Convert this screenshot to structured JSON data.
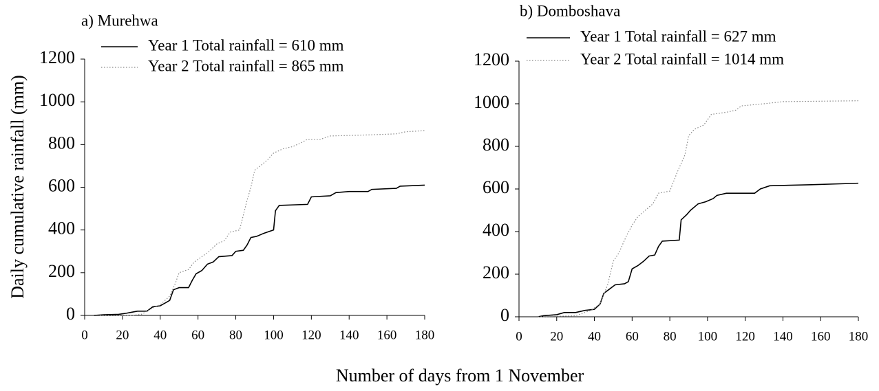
{
  "ylabel": "Daily cumulative rainfall (mm)",
  "xlabel": "Number of days from 1 November",
  "chart_data": [
    {
      "type": "line",
      "title": "a) Murehwa",
      "xlim": [
        0,
        180
      ],
      "xticks": [
        0,
        20,
        40,
        60,
        80,
        100,
        120,
        140,
        160,
        180
      ],
      "ylim": [
        0,
        1200
      ],
      "yticks": [
        0,
        200,
        400,
        600,
        800,
        1000,
        1200
      ],
      "series": [
        {
          "name": "Year 1 Total rainfall = 610 mm",
          "color": "#000000",
          "style": "solid",
          "x": [
            5,
            10,
            18,
            22,
            25,
            28,
            33,
            36,
            40,
            43,
            45,
            47,
            50,
            55,
            57,
            59,
            62,
            65,
            68,
            71,
            78,
            80,
            84,
            86,
            88,
            91,
            95,
            100,
            101,
            103,
            118,
            120,
            130,
            133,
            140,
            150,
            152,
            165,
            167,
            180
          ],
          "values": [
            0,
            3,
            5,
            10,
            15,
            20,
            20,
            40,
            45,
            60,
            70,
            120,
            130,
            130,
            165,
            195,
            210,
            240,
            250,
            275,
            280,
            300,
            305,
            330,
            365,
            370,
            385,
            400,
            490,
            515,
            520,
            555,
            560,
            575,
            580,
            580,
            590,
            595,
            605,
            610
          ]
        },
        {
          "name": "Year 2 Total rainfall = 865 mm",
          "color": "#888888",
          "style": "dotted",
          "x": [
            8,
            25,
            30,
            35,
            40,
            45,
            48,
            50,
            55,
            58,
            62,
            66,
            70,
            74,
            77,
            82,
            84,
            86,
            88,
            90,
            93,
            97,
            100,
            105,
            110,
            115,
            118,
            125,
            130,
            150,
            165,
            170,
            180
          ],
          "values": [
            0,
            0,
            5,
            30,
            50,
            90,
            150,
            200,
            215,
            250,
            275,
            300,
            335,
            350,
            390,
            400,
            470,
            540,
            600,
            680,
            700,
            730,
            760,
            780,
            790,
            810,
            825,
            825,
            840,
            845,
            850,
            860,
            865
          ]
        }
      ]
    },
    {
      "type": "line",
      "title": "b) Domboshava",
      "xlim": [
        0,
        180
      ],
      "xticks": [
        0,
        20,
        40,
        60,
        80,
        100,
        120,
        140,
        160,
        180
      ],
      "ylim": [
        0,
        1200
      ],
      "yticks": [
        0,
        200,
        400,
        600,
        800,
        1000,
        1200
      ],
      "series": [
        {
          "name": "Year 1 Total rainfall = 627 mm",
          "color": "#000000",
          "style": "solid",
          "x": [
            10,
            13,
            20,
            24,
            30,
            35,
            40,
            43,
            45,
            48,
            51,
            56,
            58,
            60,
            63,
            66,
            69,
            72,
            74,
            76,
            85,
            86,
            89,
            91,
            95,
            99,
            103,
            105,
            110,
            125,
            128,
            133,
            155,
            180
          ],
          "values": [
            0,
            5,
            10,
            20,
            20,
            30,
            35,
            60,
            110,
            130,
            150,
            155,
            165,
            225,
            240,
            260,
            285,
            290,
            330,
            355,
            360,
            455,
            480,
            500,
            530,
            540,
            555,
            570,
            580,
            580,
            600,
            615,
            620,
            627
          ]
        },
        {
          "name": "Year 2 Total rainfall = 1014 mm",
          "color": "#888888",
          "style": "dotted",
          "x": [
            10,
            30,
            38,
            43,
            47,
            50,
            53,
            57,
            60,
            63,
            67,
            71,
            74,
            80,
            84,
            88,
            90,
            93,
            98,
            102,
            110,
            115,
            118,
            130,
            140,
            180
          ],
          "values": [
            0,
            5,
            30,
            60,
            150,
            260,
            300,
            380,
            430,
            470,
            500,
            530,
            580,
            590,
            680,
            760,
            850,
            880,
            900,
            950,
            960,
            970,
            990,
            1000,
            1010,
            1014
          ]
        }
      ]
    }
  ]
}
